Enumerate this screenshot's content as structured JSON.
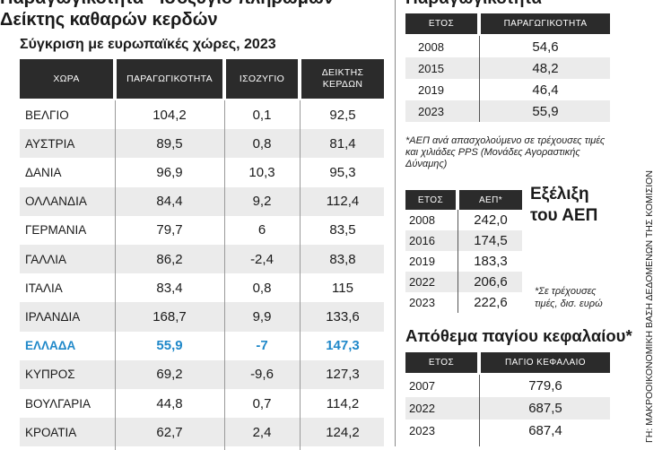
{
  "left": {
    "title_line1": "Παραγωγικότητα - Ισοζύγιο πληρωμών -",
    "title_line2": "Δείκτης καθαρών κερδών",
    "subtitle": "Σύγκριση με ευρωπαϊκές χώρες, 2023",
    "headers": [
      "ΧΩΡΑ",
      "ΠΑΡΑΓΩΓΙΚΟΤΗΤΑ",
      "ΙΣΟΖΥΓΙΟ",
      "ΔΕΙΚΤΗΣ",
      "ΚΕΡΔΩΝ"
    ],
    "rows": [
      {
        "country": "ΒΕΛΓΙΟ",
        "productivity": "104,2",
        "balance": "0,1",
        "profit": "92,5"
      },
      {
        "country": "ΑΥΣΤΡΙΑ",
        "productivity": "89,5",
        "balance": "0,8",
        "profit": "81,4"
      },
      {
        "country": "ΔΑΝΙΑ",
        "productivity": "96,9",
        "balance": "10,3",
        "profit": "95,3"
      },
      {
        "country": "ΟΛΛΑΝΔΙΑ",
        "productivity": "84,4",
        "balance": "9,2",
        "profit": "112,4"
      },
      {
        "country": "ΓΕΡΜΑΝΙΑ",
        "productivity": "79,7",
        "balance": "6",
        "profit": "83,5"
      },
      {
        "country": "ΓΑΛΛΙΑ",
        "productivity": "86,2",
        "balance": "-2,4",
        "profit": "83,8"
      },
      {
        "country": "ΙΤΑΛΙΑ",
        "productivity": "83,4",
        "balance": "0,8",
        "profit": "115"
      },
      {
        "country": "ΙΡΛΑΝΔΙΑ",
        "productivity": "168,7",
        "balance": "9,9",
        "profit": "133,6"
      },
      {
        "country": "ΕΛΛΑΔΑ",
        "productivity": "55,9",
        "balance": "-7",
        "profit": "147,3"
      },
      {
        "country": "ΚΥΠΡΟΣ",
        "productivity": "69,2",
        "balance": "-9,6",
        "profit": "127,3"
      },
      {
        "country": "ΒΟΥΛΓΑΡΙΑ",
        "productivity": "44,8",
        "balance": "0,7",
        "profit": "114,2"
      },
      {
        "country": "ΚΡΟΑΤΙΑ",
        "productivity": "62,7",
        "balance": "2,4",
        "profit": "124,2"
      }
    ],
    "highlight_color": "#1f88c9"
  },
  "productivity": {
    "title": "Παραγωγικότητα",
    "headers": [
      "ΕΤΟΣ",
      "ΠΑΡΑΓΩΓΙΚΟΤΗΤΑ"
    ],
    "rows": [
      {
        "year": "2008",
        "value": "54,6"
      },
      {
        "year": "2015",
        "value": "48,2"
      },
      {
        "year": "2019",
        "value": "46,4"
      },
      {
        "year": "2023",
        "value": "55,9"
      }
    ],
    "note": "*ΑΕΠ ανά απασχολούμενο σε τρέχουσες τιμές και χιλιάδες PPS (Μονάδες Αγοραστικής Δύναμης)"
  },
  "gdp": {
    "title_line1": "Εξέλιξη",
    "title_line2": "του ΑΕΠ",
    "headers": [
      "ΕΤΟΣ",
      "ΑΕΠ*"
    ],
    "rows": [
      {
        "year": "2008",
        "value": "242,0"
      },
      {
        "year": "2016",
        "value": "174,5"
      },
      {
        "year": "2019",
        "value": "183,3"
      },
      {
        "year": "2022",
        "value": "206,6"
      },
      {
        "year": "2023",
        "value": "222,6"
      }
    ],
    "note_line1": "*Σε τρέχουσες",
    "note_line2": "τιμές, δισ. ευρώ"
  },
  "capital": {
    "title": "Απόθεμα παγίου κεφαλαίου*",
    "headers": [
      "ΕΤΟΣ",
      "ΠΑΓΙΟ ΚΕΦΑΛΑΙΟ"
    ],
    "rows": [
      {
        "year": "2007",
        "value": "779,6"
      },
      {
        "year": "2022",
        "value": "687,5"
      },
      {
        "year": "2023",
        "value": "687,4"
      }
    ]
  },
  "source": "ΓΗ: ΜΑΚΡΟΟΙΚΟΝΟΜΙΚΗ ΒΑΣΗ ΔΕΔΟΜΕΝΩΝ ΤΗΣ ΚΟΜΙΣΙΟΝ"
}
